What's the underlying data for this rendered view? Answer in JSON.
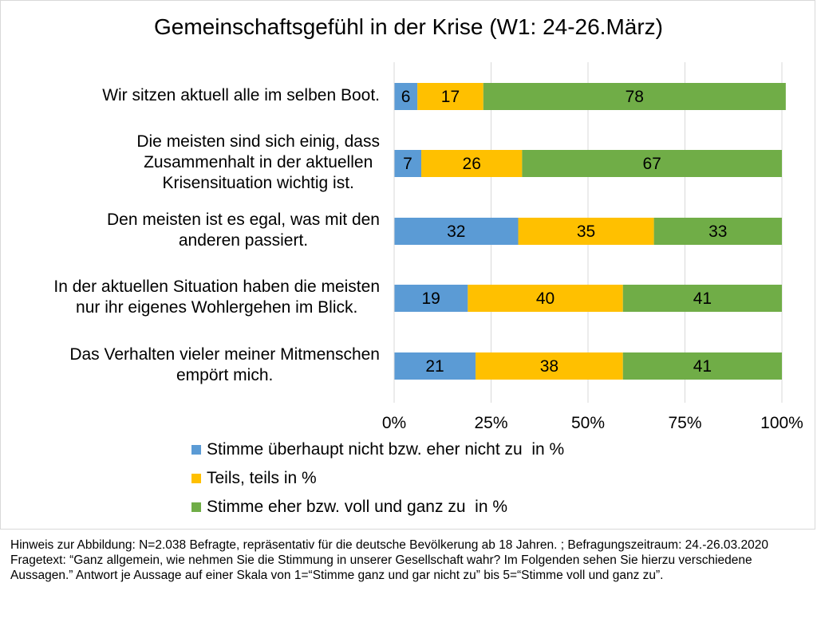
{
  "chart_data": {
    "type": "bar",
    "orientation": "horizontal",
    "stacked": true,
    "title": "Gemeinschaftsgefühl in der Krise (W1: 24-26.März)",
    "categories": [
      [
        "Wir sitzen aktuell alle im selben Boot."
      ],
      [
        "Die meisten sind sich einig, dass",
        "Zusammenhalt in der aktuellen",
        "Krisensituation wichtig ist."
      ],
      [
        "Den meisten ist es egal, was mit den",
        "anderen passiert."
      ],
      [
        "In der aktuellen Situation haben die meisten",
        "nur ihr eigenes Wohlergehen im Blick."
      ],
      [
        "Das Verhalten vieler meiner Mitmenschen",
        "empört mich."
      ]
    ],
    "series": [
      {
        "name": "Stimme überhaupt nicht bzw. eher nicht zu  in %",
        "color": "#5b9bd5",
        "values": [
          6,
          7,
          32,
          19,
          21
        ]
      },
      {
        "name": "Teils, teils in %",
        "color": "#ffc000",
        "values": [
          17,
          26,
          35,
          40,
          38
        ]
      },
      {
        "name": "Stimme eher bzw. voll und ganz zu  in %",
        "color": "#70ad47",
        "values": [
          78,
          67,
          33,
          41,
          41
        ]
      }
    ],
    "xticks": [
      "0%",
      "25%",
      "50%",
      "75%",
      "100%"
    ],
    "xlim": [
      0,
      100
    ],
    "grid": true,
    "legend_position": "bottom"
  },
  "notes": {
    "line1": "Hinweis zur Abbildung: N=2.038 Befragte, repräsentativ für die deutsche Bevölkerung ab 18 Jahren. ; Befragungszeitraum: 24.-26.03.2020",
    "line2": "Fragetext: “Ganz allgemein, wie nehmen Sie die Stimmung in unserer Gesellschaft wahr? Im Folgenden sehen Sie hierzu verschiedene Aussagen.” Antwort je Aussage auf einer Skala von 1=“Stimme ganz und gar nicht zu” bis 5=“Stimme voll und ganz zu”."
  }
}
